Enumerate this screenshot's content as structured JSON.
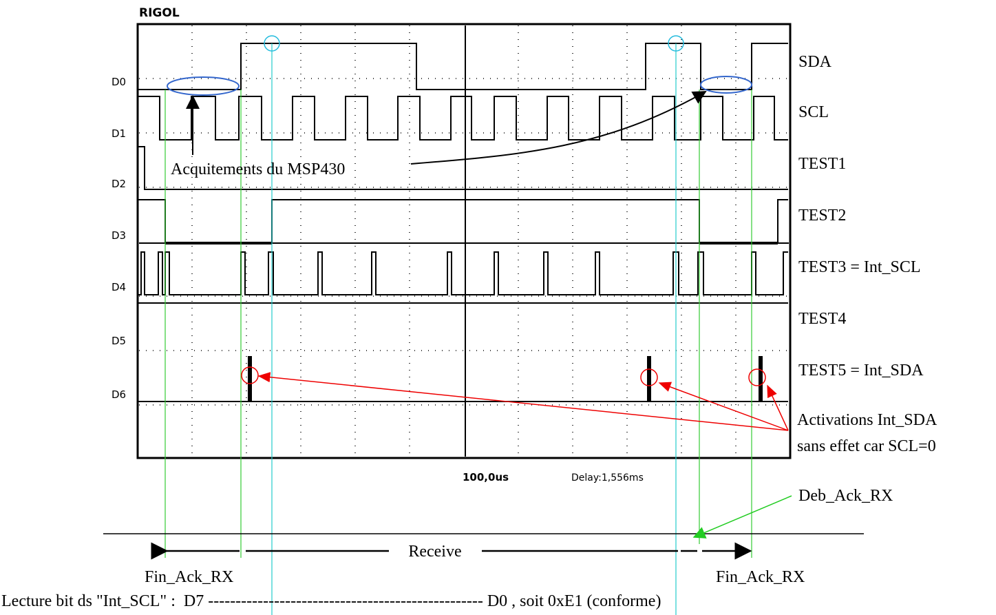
{
  "header": {
    "brand": "RIGOL"
  },
  "channels": [
    "D0",
    "D1",
    "D2",
    "D3",
    "D4",
    "D5",
    "D6"
  ],
  "signals": [
    "SDA",
    "SCL",
    "TEST1",
    "TEST2",
    "TEST3 = Int_SCL",
    "TEST4",
    "TEST5 = Int_SDA"
  ],
  "status": {
    "timebase": "100,0us",
    "delay": "Delay:1,556ms"
  },
  "annotations": {
    "ack": "Acquitements du MSP430",
    "activations": [
      "Activations Int_SDA",
      "sans effet car SCL=0"
    ],
    "deb_ack": "Deb_Ack_RX",
    "receive": "Receive",
    "fin_ack_left": "Fin_Ack_RX",
    "fin_ack_right": "Fin_Ack_RX",
    "reading": "Lecture bit ds \"Int_SCL\" :  D7 -------------------------------------------------- D0 , soit 0xE1 (conforme)"
  }
}
